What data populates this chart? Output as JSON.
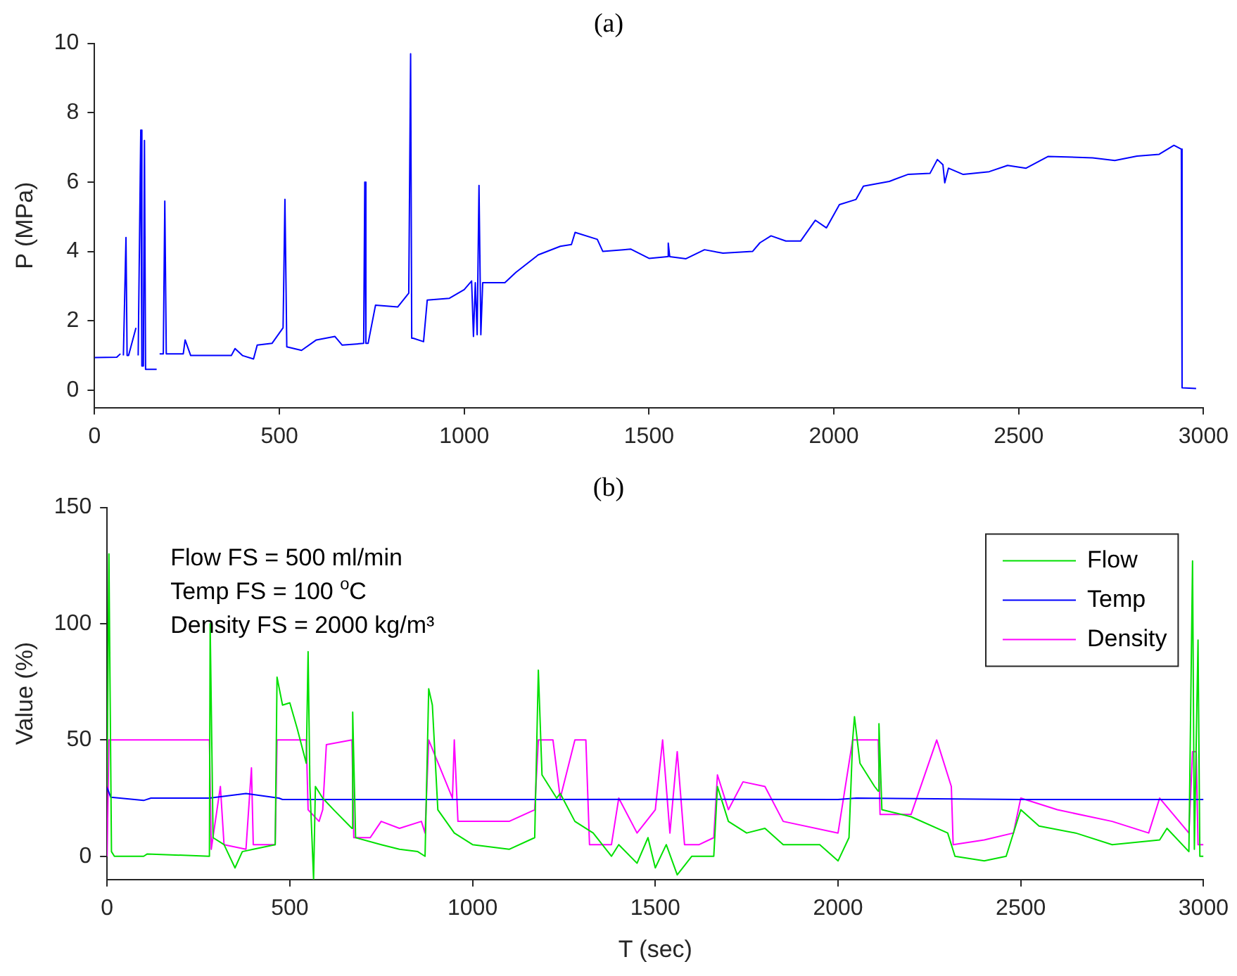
{
  "chart_data": [
    {
      "type": "line",
      "title": "(a)",
      "ylabel": "P (MPa)",
      "xlim": [
        0,
        3000
      ],
      "xticks": [
        0,
        500,
        1000,
        1500,
        2000,
        2500,
        3000
      ],
      "ylim": [
        -0.5,
        10
      ],
      "yticks": [
        0,
        2,
        4,
        6,
        8,
        10
      ],
      "grid": false,
      "legend": false,
      "marker": "none",
      "line_style": "solid",
      "series": [
        {
          "color": "#0000ff",
          "x": [
            0,
            60,
            70,
            75,
            78,
            85,
            88,
            92,
            112,
            115,
            118,
            125,
            128,
            132,
            135,
            138,
            168,
            172,
            176,
            186,
            190,
            194,
            240,
            245,
            260,
            370,
            380,
            400,
            430,
            440,
            480,
            510,
            515,
            520,
            560,
            600,
            650,
            670,
            728,
            731,
            734,
            740,
            760,
            820,
            850,
            855,
            858,
            862,
            890,
            900,
            960,
            1000,
            1020,
            1025,
            1030,
            1035,
            1040,
            1045,
            1050,
            1110,
            1140,
            1200,
            1260,
            1290,
            1300,
            1360,
            1375,
            1430,
            1450,
            1500,
            1550,
            1552,
            1556,
            1600,
            1650,
            1700,
            1780,
            1800,
            1830,
            1870,
            1910,
            1950,
            1980,
            2015,
            2060,
            2080,
            2150,
            2200,
            2260,
            2280,
            2295,
            2300,
            2310,
            2350,
            2420,
            2470,
            2520,
            2580,
            2700,
            2760,
            2820,
            2880,
            2920,
            2940,
            2942,
            2980
          ],
          "values": [
            0.94,
            0.95,
            1.05,
            null,
            1.0,
            4.4,
            1.0,
            1.0,
            1.8,
            null,
            1.0,
            7.5,
            0.7,
            0.7,
            7.2,
            0.6,
            0.6,
            null,
            1.05,
            1.05,
            5.45,
            1.05,
            1.05,
            1.45,
            1.0,
            1.0,
            1.2,
            1.0,
            0.9,
            1.3,
            1.35,
            1.8,
            5.5,
            1.25,
            1.15,
            1.45,
            1.55,
            1.3,
            1.35,
            6.0,
            1.35,
            1.35,
            2.45,
            2.4,
            2.8,
            9.7,
            1.5,
            1.5,
            1.4,
            2.6,
            2.65,
            2.9,
            3.15,
            1.55,
            3.1,
            1.6,
            5.9,
            1.6,
            3.1,
            3.1,
            3.4,
            3.9,
            4.15,
            4.2,
            4.55,
            4.35,
            4.0,
            4.05,
            4.07,
            3.8,
            3.85,
            4.24,
            3.85,
            3.79,
            4.05,
            3.95,
            4.0,
            4.25,
            4.45,
            4.3,
            4.3,
            4.9,
            4.68,
            5.35,
            5.5,
            5.88,
            6.02,
            6.22,
            6.25,
            6.65,
            6.5,
            5.98,
            6.4,
            6.22,
            6.3,
            6.48,
            6.4,
            6.74,
            6.7,
            6.62,
            6.75,
            6.8,
            7.06,
            6.95,
            0.07,
            0.05
          ]
        }
      ]
    },
    {
      "type": "line",
      "title": "(b)",
      "xlabel": "T (sec)",
      "ylabel": "Value (%)",
      "xlim": [
        0,
        3000
      ],
      "xticks": [
        0,
        500,
        1000,
        1500,
        2000,
        2500,
        3000
      ],
      "ylim": [
        -10,
        150
      ],
      "yticks": [
        0,
        50,
        100,
        150
      ],
      "grid": false,
      "legend": "top right",
      "marker": "none",
      "line_style": "solid",
      "annotations": [
        "Flow FS = 500 ml/min",
        "Temp FS = 100 $^{o}$C",
        "Density FS = 2000 kg/m³"
      ],
      "series": [
        {
          "name": "Flow",
          "color": "#00e000",
          "x": [
            0,
            5,
            12,
            20,
            100,
            110,
            280,
            282,
            290,
            320,
            350,
            370,
            400,
            460,
            465,
            480,
            500,
            520,
            545,
            550,
            555,
            565,
            570,
            590,
            620,
            670,
            672,
            680,
            750,
            800,
            850,
            870,
            880,
            890,
            905,
            950,
            1000,
            1100,
            1170,
            1180,
            1190,
            1230,
            1240,
            1280,
            1330,
            1380,
            1400,
            1450,
            1480,
            1500,
            1530,
            1560,
            1600,
            1660,
            1670,
            1700,
            1750,
            1800,
            1850,
            1950,
            2000,
            2030,
            2040,
            2045,
            2060,
            2100,
            2110,
            2112,
            2120,
            2200,
            2300,
            2320,
            2400,
            2460,
            2500,
            2550,
            2650,
            2750,
            2880,
            2900,
            2960,
            2970,
            2975,
            2985,
            2990,
            3000
          ],
          "values": [
            30,
            130,
            2,
            0,
            0,
            1,
            0,
            100,
            8,
            5,
            -5,
            2,
            3,
            5,
            77,
            65,
            66,
            55,
            40,
            88,
            30,
            -10,
            30,
            25,
            20,
            12,
            62,
            8,
            5,
            3,
            2,
            0,
            72,
            65,
            20,
            10,
            5,
            3,
            8,
            80,
            35,
            25,
            27,
            15,
            10,
            0,
            5,
            -3,
            8,
            -5,
            5,
            -8,
            0,
            0,
            30,
            15,
            10,
            12,
            5,
            5,
            -2,
            8,
            50,
            60,
            40,
            30,
            28,
            57,
            20,
            17,
            10,
            0,
            -2,
            0,
            20,
            13,
            10,
            5,
            7,
            12,
            2,
            127,
            3,
            93,
            0,
            0
          ]
        },
        {
          "name": "Temp",
          "color": "#0000ff",
          "x": [
            0,
            10,
            100,
            120,
            280,
            380,
            470,
            480,
            1000,
            1500,
            2000,
            2050,
            2500,
            3000
          ],
          "values": [
            29.5,
            25.4,
            24,
            25,
            25,
            27,
            25,
            24.4,
            24.4,
            24.5,
            24.4,
            25,
            24.4,
            24.4
          ]
        },
        {
          "name": "Density",
          "color": "#ff00ff",
          "x": [
            0,
            5,
            280,
            285,
            310,
            320,
            380,
            395,
            400,
            460,
            465,
            545,
            550,
            580,
            590,
            600,
            670,
            675,
            720,
            750,
            800,
            860,
            870,
            880,
            945,
            950,
            960,
            1000,
            1100,
            1170,
            1180,
            1220,
            1240,
            1280,
            1310,
            1320,
            1380,
            1400,
            1450,
            1500,
            1520,
            1540,
            1560,
            1580,
            1620,
            1660,
            1670,
            1700,
            1740,
            1800,
            1850,
            2000,
            2040,
            2110,
            2115,
            2200,
            2270,
            2310,
            2315,
            2400,
            2480,
            2500,
            2600,
            2750,
            2850,
            2880,
            2960,
            2970,
            2980,
            2985,
            3000
          ],
          "values": [
            0,
            50,
            50,
            3,
            30,
            5,
            3,
            38,
            5,
            5,
            50,
            50,
            20,
            15,
            20,
            48,
            50,
            8,
            8,
            15,
            12,
            15,
            10,
            50,
            25,
            50,
            15,
            15,
            15,
            20,
            50,
            50,
            25,
            50,
            50,
            5,
            5,
            25,
            10,
            20,
            50,
            10,
            45,
            5,
            5,
            8,
            35,
            20,
            32,
            30,
            15,
            10,
            50,
            50,
            18,
            18,
            50,
            30,
            5,
            7,
            10,
            25,
            20,
            15,
            10,
            25,
            10,
            45,
            45,
            5,
            5
          ]
        }
      ]
    }
  ]
}
